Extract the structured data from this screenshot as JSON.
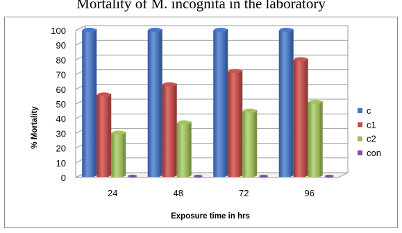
{
  "chart_data": {
    "type": "bar",
    "title": "Mortality of M. incognita in the laboratory",
    "xlabel": "Exposure time in hrs",
    "ylabel": "% Mortality",
    "categories": [
      "24",
      "48",
      "72",
      "96"
    ],
    "ylim": [
      0,
      100
    ],
    "yticks": [
      0,
      10,
      20,
      30,
      40,
      50,
      60,
      70,
      80,
      90,
      100
    ],
    "grid": true,
    "legend_position": "right",
    "series": [
      {
        "name": "c",
        "color": "#4572C4",
        "values": [
          100,
          100,
          100,
          100
        ]
      },
      {
        "name": "c1",
        "color": "#C0504D",
        "values": [
          56,
          63,
          72,
          80
        ]
      },
      {
        "name": "c2",
        "color": "#9BBB59",
        "values": [
          30,
          37,
          45,
          51
        ]
      },
      {
        "name": "con",
        "color": "#7F4FA1",
        "values": [
          0,
          0,
          0,
          0
        ]
      }
    ]
  }
}
